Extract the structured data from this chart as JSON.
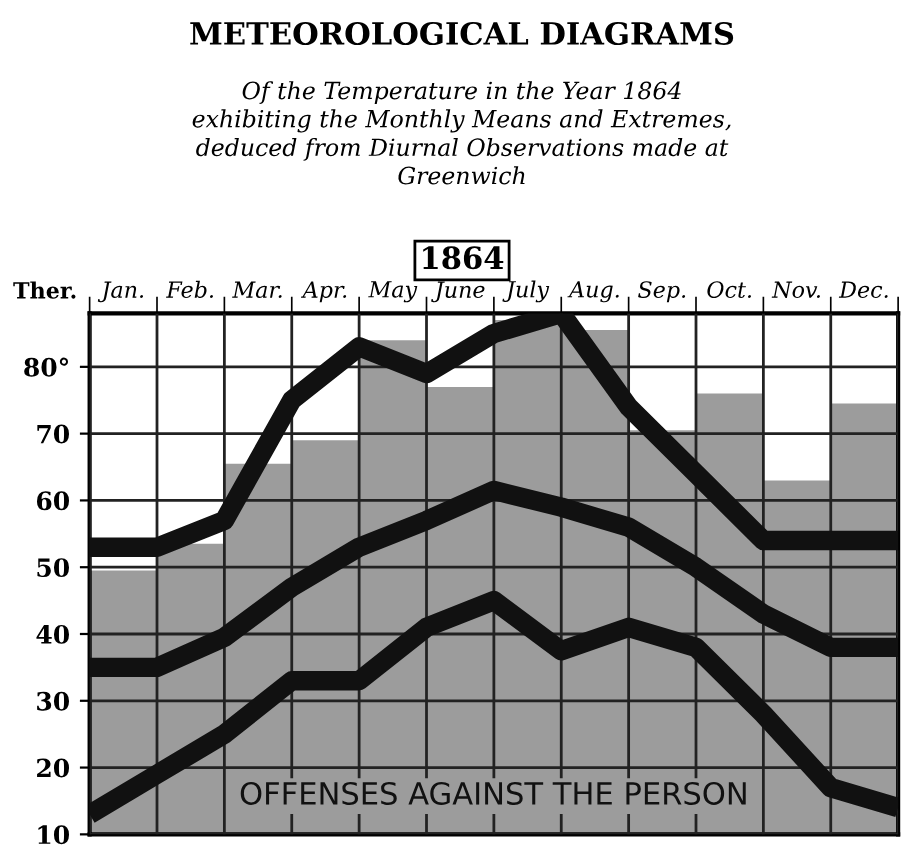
{
  "chart_data": [
    {
      "type": "bar",
      "title": "METEOROLOGICAL DIAGRAMS",
      "subtitle": "Of the Temperature in the Year 1864\nexhibiting the Monthly Means and Extremes,\ndeduced from Diurnal Observations made at\nGreenwich",
      "ylabel": "Ther.",
      "annotations": [
        "1864",
        "OFFENSES AGAINST THE PERSON"
      ],
      "categories": [
        "Jan.",
        "Feb.",
        "Mar.",
        "Apr.",
        "May",
        "June",
        "July",
        "Aug.",
        "Sep.",
        "Oct.",
        "Nov.",
        "Dec."
      ],
      "series": [
        {
          "type": "bar",
          "color": "#9c9c9c",
          "values": [
            49.5,
            53.5,
            65.5,
            69,
            84,
            77,
            87,
            85.5,
            70.5,
            76,
            63,
            74.5
          ]
        }
      ],
      "ylim": [
        10,
        88
      ],
      "yticks": [
        10,
        20,
        30,
        40,
        50,
        60,
        70,
        {
          "value": 80,
          "label": "80°"
        }
      ],
      "grid": true
    },
    {
      "type": "line",
      "categories": [
        null,
        null,
        null,
        null,
        null,
        null,
        null,
        null,
        null,
        null,
        null,
        null,
        null
      ],
      "series": [
        {
          "color": "#111111",
          "values": [
            53,
            53,
            57,
            75,
            83,
            79,
            85,
            88,
            74,
            64,
            54,
            54,
            54
          ]
        },
        {
          "color": "#111111",
          "values": [
            35,
            35,
            39.5,
            47,
            53,
            57,
            61.5,
            59,
            56,
            50,
            43,
            38,
            38
          ]
        },
        {
          "color": "#111111",
          "values": [
            13,
            19,
            25,
            33,
            33,
            41,
            45,
            37.5,
            41,
            38,
            28,
            17,
            14
          ]
        }
      ],
      "ylim": [
        10,
        88
      ],
      "yticks": [
        10,
        20,
        30,
        40,
        50,
        60,
        70,
        80
      ],
      "tick_labels": false
    }
  ]
}
